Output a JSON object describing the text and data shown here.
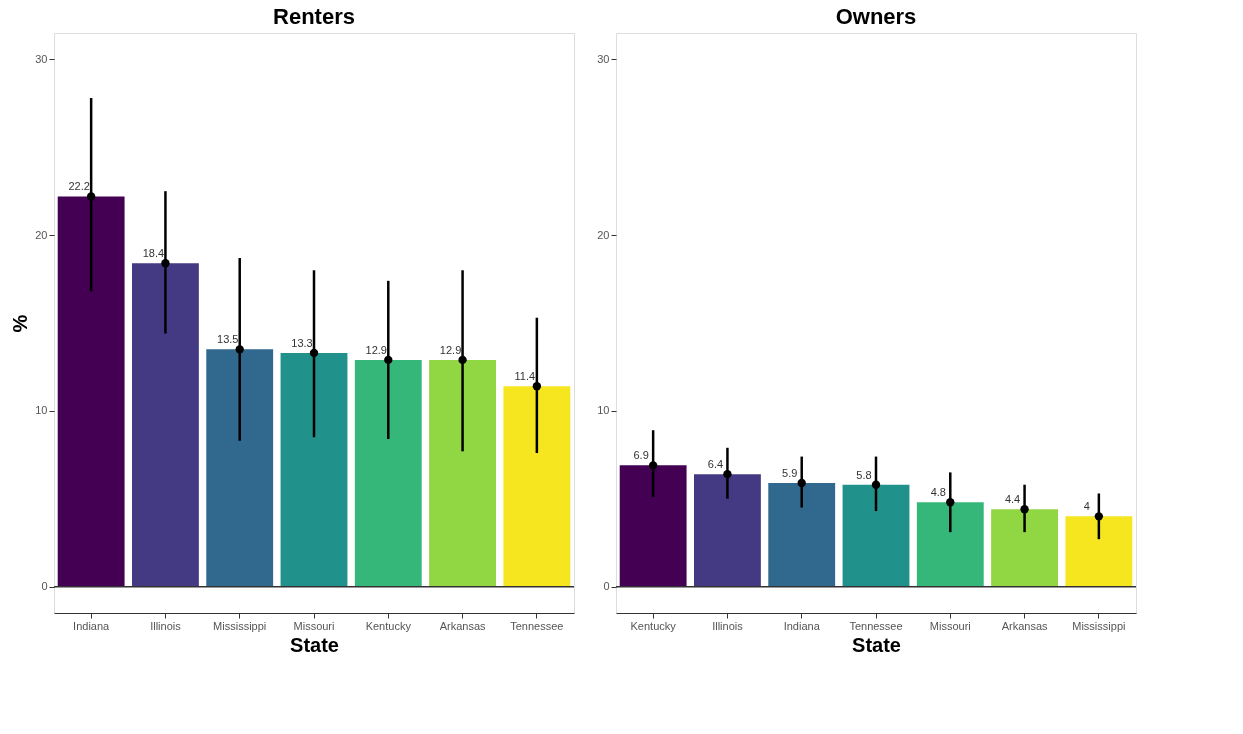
{
  "chart_data": [
    {
      "type": "bar",
      "title": "Renters",
      "xlabel": "State",
      "ylabel": "%",
      "categories": [
        "Indiana",
        "Illinois",
        "Mississippi",
        "Missouri",
        "Kentucky",
        "Arkansas",
        "Tennessee"
      ],
      "series": [
        {
          "values": [
            22.2,
            18.4,
            13.5,
            13.3,
            12.9,
            12.9,
            11.4
          ],
          "value_labels": [
            "22.2",
            "18.4",
            "13.5",
            "13.3",
            "12.9",
            "12.9",
            "11.4"
          ],
          "colors": [
            "#440154",
            "#443983",
            "#31688e",
            "#21918c",
            "#35b779",
            "#90d743",
            "#f6e620"
          ],
          "errors": [
            [
              16.8,
              27.8
            ],
            [
              14.4,
              22.5
            ],
            [
              8.3,
              18.7
            ],
            [
              8.5,
              18.0
            ],
            [
              8.4,
              17.4
            ],
            [
              7.7,
              18.0
            ],
            [
              7.6,
              15.3
            ]
          ]
        },
        {
          "type": "scatter",
          "x": [
            "Indiana",
            "Illinois",
            "Mississippi",
            "Missouri",
            "Kentucky",
            "Arkansas",
            "Tennessee"
          ],
          "values": [
            22.2,
            18.4,
            13.5,
            13.3,
            12.9,
            12.9,
            11.4
          ],
          "color": "#000000",
          "marker": "circle"
        }
      ],
      "ylim": [
        -1.5,
        31.5
      ],
      "yticks": [
        0,
        10,
        20,
        30
      ],
      "grid": false,
      "ref_lines": [
        {
          "axis": "y",
          "value": 0
        }
      ]
    },
    {
      "type": "bar",
      "title": "Owners",
      "xlabel": "State",
      "categories": [
        "Kentucky",
        "Illinois",
        "Indiana",
        "Tennessee",
        "Missouri",
        "Arkansas",
        "Mississippi"
      ],
      "series": [
        {
          "values": [
            6.9,
            6.4,
            5.9,
            5.8,
            4.8,
            4.4,
            4
          ],
          "value_labels": [
            "6.9",
            "6.4",
            "5.9",
            "5.8",
            "4.8",
            "4.4",
            "4"
          ],
          "colors": [
            "#440154",
            "#443983",
            "#31688e",
            "#21918c",
            "#35b779",
            "#90d743",
            "#f6e620"
          ],
          "errors": [
            [
              5.1,
              8.9
            ],
            [
              5.0,
              7.9
            ],
            [
              4.5,
              7.4
            ],
            [
              4.3,
              7.4
            ],
            [
              3.1,
              6.5
            ],
            [
              3.1,
              5.8
            ],
            [
              2.7,
              5.3
            ]
          ]
        },
        {
          "type": "scatter",
          "x": [
            "Kentucky",
            "Illinois",
            "Indiana",
            "Tennessee",
            "Missouri",
            "Arkansas",
            "Mississippi"
          ],
          "values": [
            6.9,
            6.4,
            5.9,
            5.8,
            4.8,
            4.4,
            4
          ],
          "color": "#000000",
          "marker": "circle"
        }
      ],
      "ylim": [
        -1.5,
        31.5
      ],
      "yticks": [
        0,
        10,
        20,
        30
      ],
      "grid": false,
      "ref_lines": [
        {
          "axis": "y",
          "value": 0
        }
      ]
    }
  ]
}
